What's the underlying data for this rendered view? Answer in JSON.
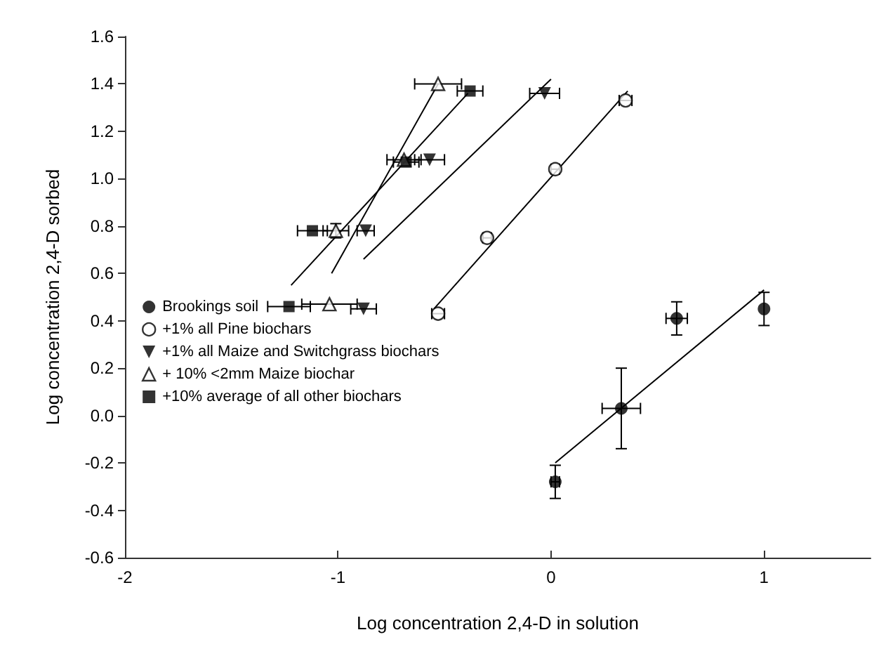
{
  "chart_data": {
    "type": "scatter",
    "xlabel": "Log concentration 2,4-D in solution",
    "ylabel": "Log concentration 2,4-D sorbed",
    "xlim": [
      -2,
      1.5
    ],
    "xticks": [
      -2,
      -1,
      0,
      1
    ],
    "ylim": [
      -0.6,
      1.6
    ],
    "yticks": [
      -0.6,
      -0.4,
      -0.2,
      {
        "value": 0,
        "label": "0.0"
      },
      0.2,
      0.4,
      0.6,
      0.8,
      {
        "value": 1,
        "label": "1.0"
      },
      1.2,
      1.4,
      1.6
    ],
    "legend": "left",
    "grid": false,
    "series": [
      {
        "name": "Brookings soil",
        "color": "#000000",
        "marker": "circle",
        "x": [
          0.02,
          0.33,
          0.59,
          1.0
        ],
        "values": [
          -0.28,
          0.03,
          0.41,
          0.45
        ],
        "errors": [
          0.07,
          0.17,
          0.07,
          0.07
        ],
        "xerrors": [
          0.02,
          0.09,
          0.05,
          null
        ]
      },
      {
        "name": "+1% all Pine biochars",
        "color": "#ffffff",
        "marker": "circle",
        "x": [
          -0.53,
          -0.3,
          0.02,
          0.35
        ],
        "values": [
          0.43,
          0.75,
          1.04,
          1.33
        ],
        "xerrors": [
          0.03,
          0.02,
          0.02,
          0.03
        ]
      },
      {
        "name": "+1% all Maize and Switchgrass biochars",
        "color": "#000000",
        "marker": "triangle-down",
        "x": [
          -0.88,
          -0.87,
          -0.57,
          -0.03
        ],
        "values": [
          0.45,
          0.78,
          1.08,
          1.36
        ],
        "xerrors": [
          0.06,
          0.04,
          0.07,
          0.07
        ]
      },
      {
        "name": "+ 10% <2mm Maize biochar",
        "color": "#ffffff",
        "marker": "triangle",
        "x": [
          -1.04,
          -1.01,
          -0.69,
          -0.53
        ],
        "values": [
          0.47,
          0.78,
          1.08,
          1.4
        ],
        "xerrors": [
          0.13,
          0.06,
          0.08,
          0.11
        ],
        "errors": [
          null,
          0.03,
          null,
          null
        ]
      },
      {
        "name": "+10% average of all other biochars",
        "color": "#000000",
        "marker": "square",
        "x": [
          -1.23,
          -1.12,
          -0.68,
          -0.38
        ],
        "values": [
          0.46,
          0.78,
          1.07,
          1.37
        ],
        "xerrors": [
          0.1,
          0.07,
          0.06,
          0.06
        ]
      },
      {
        "type": "line",
        "color": "#000000",
        "marker": "none",
        "x": [
          0.02,
          1.0
        ],
        "values": [
          -0.2,
          0.53
        ]
      },
      {
        "type": "line",
        "color": "#000000",
        "marker": "none",
        "x": [
          -0.55,
          0.36
        ],
        "values": [
          0.45,
          1.37
        ]
      },
      {
        "type": "line",
        "color": "#000000",
        "marker": "none",
        "x": [
          -0.88,
          0.0
        ],
        "values": [
          0.66,
          1.42
        ]
      },
      {
        "type": "line",
        "color": "#000000",
        "marker": "none",
        "x": [
          -1.03,
          -0.53
        ],
        "values": [
          0.6,
          1.4
        ]
      },
      {
        "type": "line",
        "color": "#000000",
        "marker": "none",
        "x": [
          -1.22,
          -0.39
        ],
        "values": [
          0.55,
          1.36
        ]
      }
    ]
  }
}
